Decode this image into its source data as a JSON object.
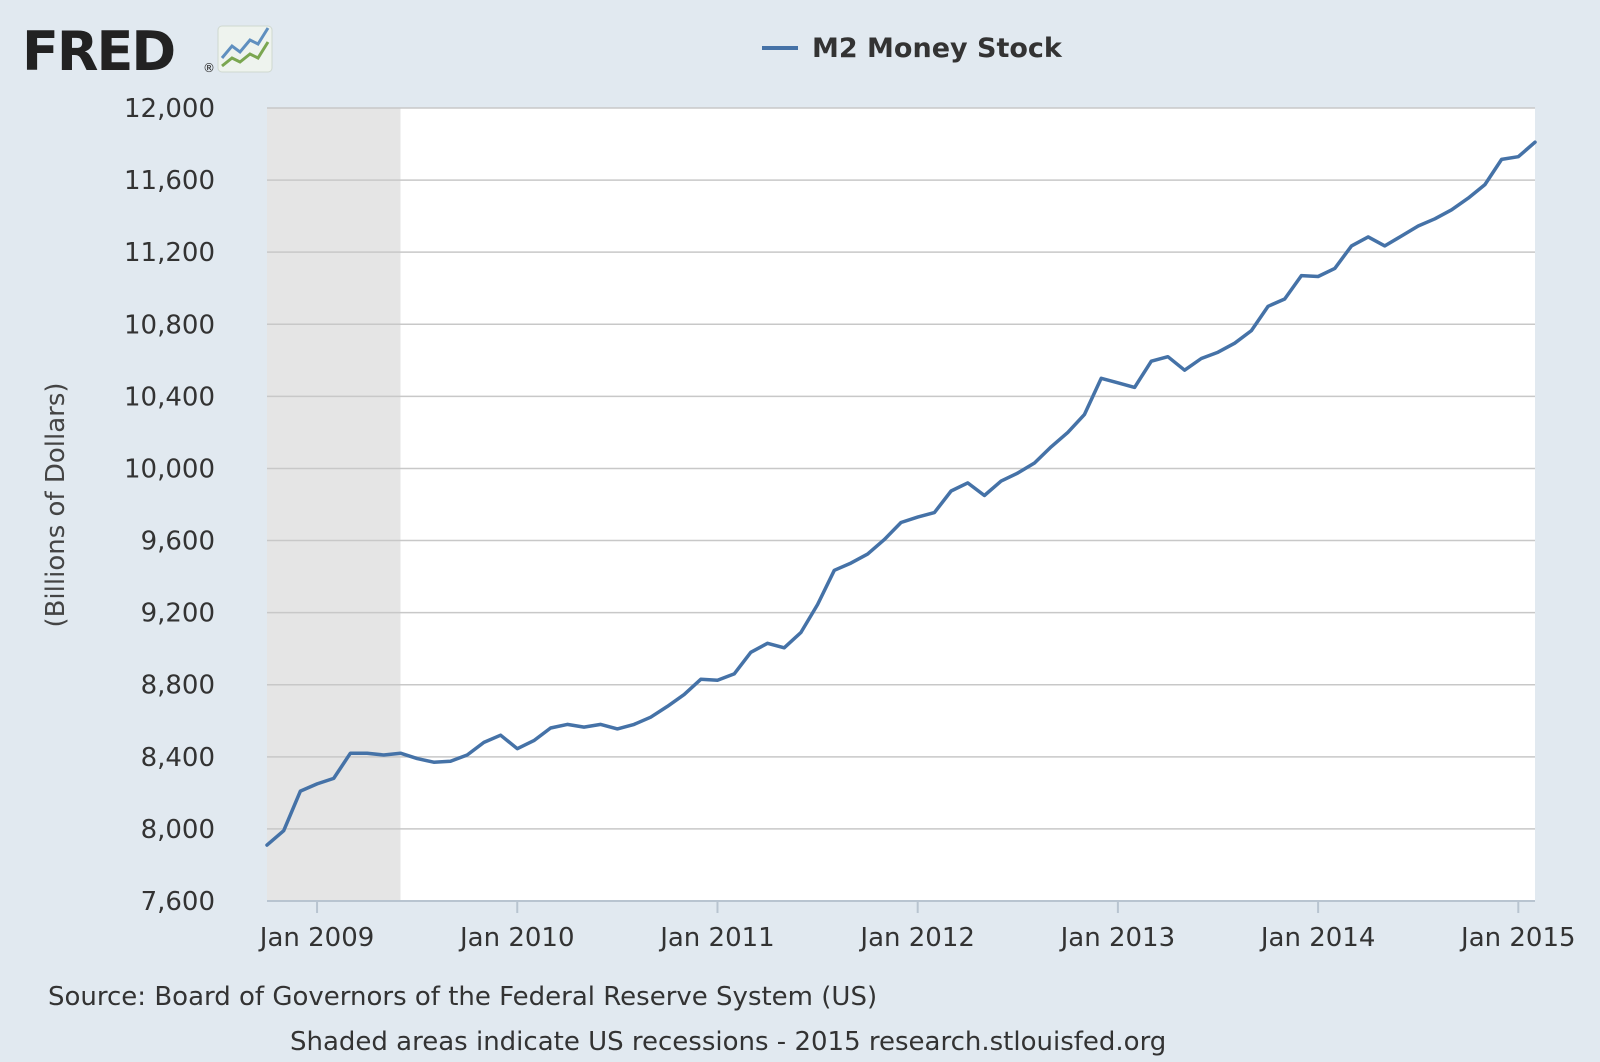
{
  "logo": {
    "text": "FRED",
    "registered": "®"
  },
  "source_text": "Source: Board of Governors of the Federal Reserve System (US)",
  "footer_text": "Shaded areas indicate US recessions - 2015 research.stlouisfed.org",
  "colors": {
    "background": "#e1e9f0",
    "plot_background": "#ffffff",
    "series": "#4572a7",
    "recession": "#e5e5e5",
    "grid": "#c8c8c8"
  },
  "chart_data": {
    "type": "line",
    "title": "",
    "xlabel": "",
    "ylabel": "(Billions of Dollars)",
    "ylim": [
      7600,
      12000
    ],
    "xlim": [
      "2008-10",
      "2015-02"
    ],
    "grid": true,
    "legend_position": "top-center",
    "y_ticks": [
      "7,600",
      "8,000",
      "8,400",
      "8,800",
      "9,200",
      "9,600",
      "10,000",
      "10,400",
      "10,800",
      "11,200",
      "11,600",
      "12,000"
    ],
    "x_ticks": [
      {
        "date": "2009-01",
        "label": "Jan 2009"
      },
      {
        "date": "2010-01",
        "label": "Jan 2010"
      },
      {
        "date": "2011-01",
        "label": "Jan 2011"
      },
      {
        "date": "2012-01",
        "label": "Jan 2012"
      },
      {
        "date": "2013-01",
        "label": "Jan 2013"
      },
      {
        "date": "2014-01",
        "label": "Jan 2014"
      },
      {
        "date": "2015-01",
        "label": "Jan 2015"
      }
    ],
    "recessions": [
      {
        "start": "2008-10",
        "end": "2009-06"
      }
    ],
    "series": [
      {
        "name": "M2 Money Stock",
        "x": [
          "2008-10",
          "2008-11",
          "2008-12",
          "2009-01",
          "2009-02",
          "2009-03",
          "2009-04",
          "2009-05",
          "2009-06",
          "2009-07",
          "2009-08",
          "2009-09",
          "2009-10",
          "2009-11",
          "2009-12",
          "2010-01",
          "2010-02",
          "2010-03",
          "2010-04",
          "2010-05",
          "2010-06",
          "2010-07",
          "2010-08",
          "2010-09",
          "2010-10",
          "2010-11",
          "2010-12",
          "2011-01",
          "2011-02",
          "2011-03",
          "2011-04",
          "2011-05",
          "2011-06",
          "2011-07",
          "2011-08",
          "2011-09",
          "2011-10",
          "2011-11",
          "2011-12",
          "2012-01",
          "2012-02",
          "2012-03",
          "2012-04",
          "2012-05",
          "2012-06",
          "2012-07",
          "2012-08",
          "2012-09",
          "2012-10",
          "2012-11",
          "2012-12",
          "2013-01",
          "2013-02",
          "2013-03",
          "2013-04",
          "2013-05",
          "2013-06",
          "2013-07",
          "2013-08",
          "2013-09",
          "2013-10",
          "2013-11",
          "2013-12",
          "2014-01",
          "2014-02",
          "2014-03",
          "2014-04",
          "2014-05",
          "2014-06",
          "2014-07",
          "2014-08",
          "2014-09",
          "2014-10",
          "2014-11",
          "2014-12",
          "2015-01",
          "2015-02"
        ],
        "values": [
          7910,
          7990,
          8210,
          8250,
          8280,
          8420,
          8420,
          8410,
          8420,
          8390,
          8370,
          8375,
          8410,
          8480,
          8520,
          8445,
          8490,
          8560,
          8580,
          8565,
          8580,
          8555,
          8580,
          8620,
          8680,
          8745,
          8830,
          8825,
          8860,
          8980,
          9030,
          9005,
          9090,
          9245,
          9435,
          9475,
          9525,
          9605,
          9700,
          9730,
          9755,
          9875,
          9920,
          9850,
          9930,
          9975,
          10030,
          10120,
          10200,
          10300,
          10500,
          10475,
          10450,
          10595,
          10620,
          10545,
          10610,
          10645,
          10695,
          10765,
          10900,
          10940,
          11070,
          11065,
          11110,
          11235,
          11285,
          11235,
          11290,
          11345,
          11385,
          11435,
          11500,
          11575,
          11715,
          11730,
          11810
        ]
      }
    ]
  }
}
